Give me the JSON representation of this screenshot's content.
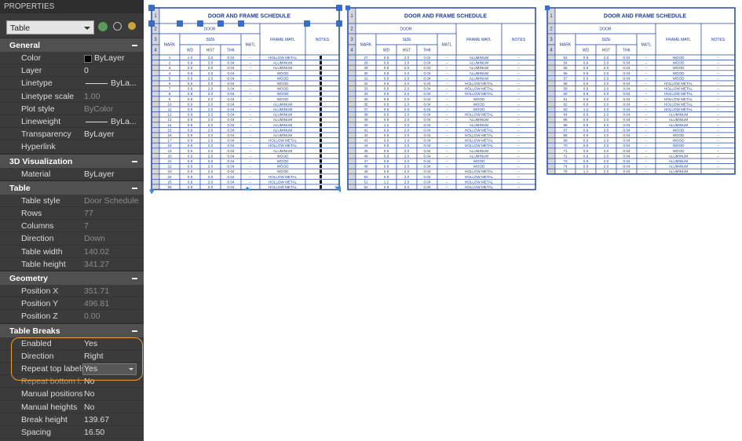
{
  "panel": {
    "title": "PROPERTIES",
    "selector": "Table",
    "sections": [
      {
        "title": "General",
        "rows": [
          {
            "label": "Color",
            "value": "ByLayer",
            "swatch": "#000000"
          },
          {
            "label": "Layer",
            "value": "0"
          },
          {
            "label": "Linetype",
            "value": "ByLa...",
            "line": true
          },
          {
            "label": "Linetype scale",
            "value": "1.00",
            "disabled": true
          },
          {
            "label": "Plot style",
            "value": "ByColor",
            "disabled": true
          },
          {
            "label": "Lineweight",
            "value": "ByLa...",
            "line": true
          },
          {
            "label": "Transparency",
            "value": "ByLayer"
          },
          {
            "label": "Hyperlink"
          }
        ]
      },
      {
        "title": "3D Visualization",
        "rows": [
          {
            "label": "Material",
            "value": "ByLayer"
          }
        ]
      },
      {
        "title": "Table",
        "rows": [
          {
            "label": "Table style",
            "value": "Door Schedule",
            "disabled": true
          },
          {
            "label": "Rows",
            "value": "77",
            "disabled": true
          },
          {
            "label": "Columns",
            "value": "7",
            "disabled": true
          },
          {
            "label": "Direction",
            "value": "Down",
            "disabled": true
          },
          {
            "label": "Table width",
            "value": "140.02",
            "disabled": true
          },
          {
            "label": "Table height",
            "value": "341.27",
            "disabled": true
          }
        ]
      },
      {
        "title": "Geometry",
        "rows": [
          {
            "label": "Position X",
            "value": "351.71",
            "disabled": true
          },
          {
            "label": "Position Y",
            "value": "496.81",
            "disabled": true
          },
          {
            "label": "Position Z",
            "value": "0.00",
            "disabled": true
          }
        ]
      },
      {
        "title": "Table Breaks",
        "rows": [
          {
            "label": "Enabled",
            "value": "Yes"
          },
          {
            "label": "Direction",
            "value": "Right"
          },
          {
            "label": "Repeat top labels",
            "value": "Yes",
            "dropdown": true
          },
          {
            "label": "Repeat bottom l...",
            "value": "No"
          },
          {
            "label": "Manual positions",
            "value": "No"
          },
          {
            "label": "Manual heights",
            "value": "No"
          },
          {
            "label": "Break height",
            "value": "139.67"
          },
          {
            "label": "Spacing",
            "value": "16.50"
          }
        ]
      }
    ]
  },
  "tables": [
    {
      "title": "DOOR AND FRAME SCHEDULE",
      "row_numbers": [
        "1",
        "2",
        "3",
        "4"
      ],
      "headers": {
        "door": "DOOR",
        "size": "SIZE",
        "mark": "MARK",
        "wd": "WD",
        "hgt": "HGT",
        "thk": "THK",
        "matl": "MATL",
        "frame": "FRAME MATL",
        "notes": "NOTES"
      },
      "rows": [
        [
          "1",
          "1.0",
          "2.0",
          "0.04",
          "--",
          "HOLLOW METAL"
        ],
        [
          "2",
          "0.9",
          "2.0",
          "0.04",
          "--",
          "ALUMINUM"
        ],
        [
          "3",
          "0.9",
          "2.0",
          "0.04",
          "--",
          "ALUMINUM"
        ],
        [
          "4",
          "0.9",
          "2.0",
          "0.04",
          "--",
          "WOOD"
        ],
        [
          "5",
          "0.9",
          "2.0",
          "0.04",
          "--",
          "WOOD"
        ],
        [
          "6",
          "0.9",
          "2.0",
          "0.04",
          "--",
          "WOOD"
        ],
        [
          "7",
          "0.9",
          "2.0",
          "0.04",
          "--",
          "WOOD"
        ],
        [
          "8",
          "0.9",
          "2.0",
          "0.04",
          "--",
          "WOOD"
        ],
        [
          "9",
          "0.9",
          "2.0",
          "0.04",
          "--",
          "WOOD"
        ],
        [
          "10",
          "0.9",
          "2.0",
          "0.04",
          "--",
          "ALUMINUM"
        ],
        [
          "11",
          "0.9",
          "2.0",
          "0.04",
          "--",
          "ALUMINUM"
        ],
        [
          "12",
          "0.9",
          "2.0",
          "0.04",
          "--",
          "ALUMINUM"
        ],
        [
          "13",
          "0.9",
          "2.0",
          "0.04",
          "--",
          "ALUMINUM"
        ],
        [
          "14",
          "0.9",
          "2.0",
          "0.04",
          "--",
          "ALUMINUM"
        ],
        [
          "15",
          "0.9",
          "2.0",
          "0.04",
          "--",
          "ALUMINUM"
        ],
        [
          "16",
          "0.9",
          "2.0",
          "0.04",
          "--",
          "ALUMINUM"
        ],
        [
          "17",
          "0.9",
          "2.0",
          "0.04",
          "--",
          "HOLLOW METAL"
        ],
        [
          "18",
          "0.9",
          "2.0",
          "0.04",
          "--",
          "HOLLOW METAL"
        ],
        [
          "19",
          "0.9",
          "2.0",
          "0.04",
          "--",
          "ALUMINUM"
        ],
        [
          "20",
          "0.9",
          "2.0",
          "0.04",
          "--",
          "WOOD"
        ],
        [
          "21",
          "0.9",
          "2.0",
          "0.04",
          "--",
          "WOOD"
        ],
        [
          "22",
          "0.9",
          "2.0",
          "0.04",
          "--",
          "WOOD"
        ],
        [
          "23",
          "0.9",
          "2.0",
          "0.04",
          "--",
          "WOOD"
        ],
        [
          "24",
          "0.9",
          "2.0",
          "0.04",
          "--",
          "HOLLOW METAL"
        ],
        [
          "25",
          "0.9",
          "2.0",
          "0.04",
          "--",
          "HOLLOW METAL"
        ],
        [
          "26",
          "0.9",
          "2.0",
          "0.04",
          "--",
          "HOLLOW METAL"
        ]
      ]
    },
    {
      "title": "DOOR AND FRAME SCHEDULE",
      "row_numbers": [
        "1",
        "2",
        "3",
        "4"
      ],
      "headers": {
        "door": "DOOR",
        "size": "SIZE",
        "mark": "MARK",
        "wd": "WD",
        "hgt": "HGT",
        "thk": "THK",
        "matl": "MATL",
        "frame": "FRAME MATL",
        "notes": "NOTES"
      },
      "rows": [
        [
          "27",
          "0.9",
          "2.0",
          "0.04",
          "--",
          "ALUMINUM",
          "--"
        ],
        [
          "28",
          "0.9",
          "2.0",
          "0.04",
          "--",
          "ALUMINUM",
          "--"
        ],
        [
          "29",
          "0.9",
          "2.0",
          "0.04",
          "--",
          "ALUMINUM",
          "--"
        ],
        [
          "30",
          "0.9",
          "2.0",
          "0.04",
          "--",
          "ALUMINUM",
          "--"
        ],
        [
          "31",
          "0.9",
          "2.0",
          "0.04",
          "--",
          "ALUMINUM",
          "--"
        ],
        [
          "32",
          "0.9",
          "2.0",
          "0.04",
          "--",
          "HOLLOW METAL",
          "--"
        ],
        [
          "33",
          "0.9",
          "2.0",
          "0.04",
          "--",
          "HOLLOW METAL",
          "--"
        ],
        [
          "34",
          "0.9",
          "2.0",
          "0.04",
          "--",
          "HOLLOW METAL",
          "--"
        ],
        [
          "35",
          "0.9",
          "2.0",
          "0.04",
          "--",
          "WOOD",
          "--"
        ],
        [
          "36",
          "0.9",
          "2.0",
          "0.04",
          "--",
          "WOOD",
          "--"
        ],
        [
          "37",
          "0.9",
          "2.0",
          "0.04",
          "--",
          "WOOD",
          "--"
        ],
        [
          "38",
          "0.9",
          "2.0",
          "0.04",
          "--",
          "HOLLOW METAL",
          "--"
        ],
        [
          "39",
          "0.9",
          "2.0",
          "0.04",
          "--",
          "ALUMINUM",
          "--"
        ],
        [
          "40",
          "1.2",
          "2.0",
          "0.04",
          "--",
          "ALUMINUM",
          "--"
        ],
        [
          "41",
          "0.9",
          "2.0",
          "0.04",
          "--",
          "HOLLOW METAL",
          "--"
        ],
        [
          "42",
          "0.9",
          "2.0",
          "0.04",
          "--",
          "HOLLOW METAL",
          "--"
        ],
        [
          "43",
          "0.9",
          "2.0",
          "0.04",
          "--",
          "HOLLOW METAL",
          "--"
        ],
        [
          "44",
          "0.9",
          "2.0",
          "0.04",
          "--",
          "HOLLOW METAL",
          "--"
        ],
        [
          "45",
          "0.9",
          "2.0",
          "0.04",
          "--",
          "ALUMINUM",
          "--"
        ],
        [
          "46",
          "0.9",
          "2.0",
          "0.04",
          "--",
          "ALUMINUM",
          "--"
        ],
        [
          "47",
          "0.9",
          "2.0",
          "0.04",
          "--",
          "WOOD",
          "--"
        ],
        [
          "48",
          "0.9",
          "2.0",
          "0.04",
          "--",
          "WOOD",
          "--"
        ],
        [
          "49",
          "0.9",
          "2.0",
          "0.04",
          "--",
          "HOLLOW METAL",
          "--"
        ],
        [
          "50",
          "0.9",
          "2.0",
          "0.04",
          "--",
          "HOLLOW METAL",
          "--"
        ],
        [
          "51",
          "1.2",
          "2.0",
          "0.04",
          "--",
          "HOLLOW METAL",
          "--"
        ],
        [
          "52",
          "0.9",
          "2.0",
          "0.04",
          "--",
          "HOLLOW METAL",
          "--"
        ]
      ]
    },
    {
      "title": "DOOR AND FRAME SCHEDULE",
      "row_numbers": [
        "1",
        "2",
        "3",
        "4"
      ],
      "headers": {
        "door": "DOOR",
        "size": "SIZE",
        "mark": "MARK",
        "wd": "WD",
        "hgt": "HGT",
        "thk": "THK",
        "matl": "MATL",
        "frame": "FRAME MATL",
        "notes": "NOTES"
      },
      "rows": [
        [
          "53",
          "0.9",
          "2.0",
          "0.04",
          "--",
          "WOOD",
          "--"
        ],
        [
          "54",
          "0.9",
          "2.0",
          "0.04",
          "--",
          "WOOD",
          "--"
        ],
        [
          "55",
          "0.9",
          "2.0",
          "0.04",
          "--",
          "WOOD",
          "--"
        ],
        [
          "56",
          "0.9",
          "2.0",
          "0.04",
          "--",
          "WOOD",
          "--"
        ],
        [
          "57",
          "0.9",
          "2.0",
          "0.04",
          "--",
          "WOOD",
          "--"
        ],
        [
          "58",
          "0.9",
          "2.0",
          "0.04",
          "--",
          "HOLLOW METAL",
          "--"
        ],
        [
          "59",
          "0.9",
          "2.0",
          "0.04",
          "--",
          "HOLLOW METAL",
          "--"
        ],
        [
          "60",
          "0.9",
          "2.0",
          "0.04",
          "--",
          "HOLLOW METAL",
          "--"
        ],
        [
          "61",
          "0.9",
          "2.0",
          "0.04",
          "--",
          "HOLLOW METAL",
          "--"
        ],
        [
          "62",
          "0.9",
          "2.0",
          "0.04",
          "--",
          "HOLLOW METAL",
          "--"
        ],
        [
          "63",
          "1.2",
          "2.0",
          "0.04",
          "--",
          "HOLLOW METAL",
          "--"
        ],
        [
          "64",
          "0.9",
          "2.0",
          "0.04",
          "--",
          "ALUMINUM",
          "--"
        ],
        [
          "65",
          "0.9",
          "2.0",
          "0.04",
          "--",
          "ALUMINUM",
          "--"
        ],
        [
          "66",
          "0.9",
          "2.0",
          "0.04",
          "--",
          "ALUMINUM",
          "--"
        ],
        [
          "67",
          "0.9",
          "2.0",
          "0.04",
          "--",
          "WOOD",
          "--"
        ],
        [
          "68",
          "0.9",
          "2.0",
          "0.04",
          "--",
          "WOOD",
          "--"
        ],
        [
          "69",
          "0.9",
          "2.0",
          "0.04",
          "--",
          "WOOD",
          "--"
        ],
        [
          "70",
          "0.9",
          "2.0",
          "0.04",
          "--",
          "WOOD",
          "--"
        ],
        [
          "71",
          "0.9",
          "2.0",
          "0.04",
          "--",
          "WOOD",
          "--"
        ],
        [
          "72",
          "0.9",
          "2.0",
          "0.04",
          "--",
          "ALUMINUM",
          "--"
        ],
        [
          "73",
          "0.9",
          "2.0",
          "0.04",
          "--",
          "ALUMINUM",
          "--"
        ],
        [
          "74",
          "0.9",
          "2.0",
          "0.04",
          "--",
          "ALUMINUM",
          "--"
        ],
        [
          "75",
          "1.2",
          "2.0",
          "0.04",
          "--",
          "ALUMINUM",
          "--"
        ]
      ]
    }
  ]
}
